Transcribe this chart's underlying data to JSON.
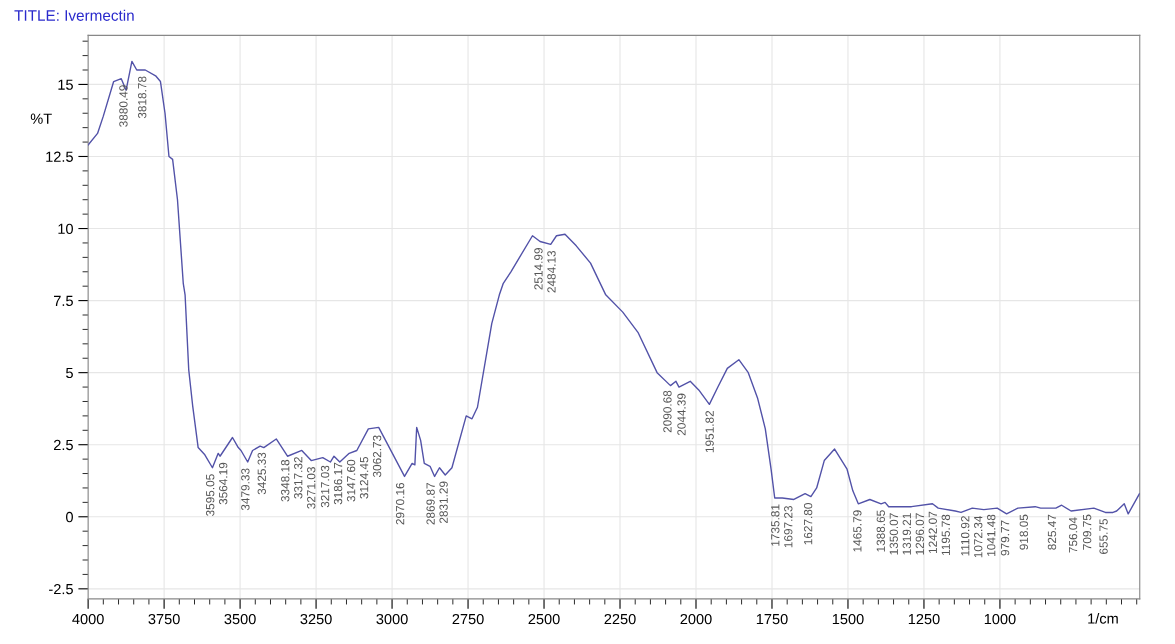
{
  "chart_data": {
    "type": "line",
    "title": "TITLE: Ivermectin",
    "xlabel": "1/cm",
    "ylabel": "%T",
    "x": [
      4000,
      3969,
      3950,
      3916,
      3891,
      3875,
      3856,
      3840,
      3812,
      3778,
      3762,
      3747,
      3734,
      3722,
      3706,
      3687,
      3681,
      3669,
      3656,
      3638,
      3616,
      3591,
      3572,
      3566,
      3525,
      3506,
      3497,
      3475,
      3459,
      3434,
      3422,
      3381,
      3344,
      3297,
      3266,
      3228,
      3203,
      3191,
      3172,
      3141,
      3116,
      3078,
      3044,
      2959,
      2934,
      2925,
      2919,
      2906,
      2894,
      2875,
      2860,
      2844,
      2825,
      2803,
      2756,
      2737,
      2719,
      2672,
      2647,
      2634,
      2609,
      2538,
      2513,
      2478,
      2459,
      2431,
      2394,
      2347,
      2297,
      2241,
      2191,
      2128,
      2084,
      2066,
      2056,
      2019,
      1991,
      1956,
      1928,
      1897,
      1859,
      1828,
      1797,
      1772,
      1753,
      1741,
      1716,
      1678,
      1641,
      1622,
      1603,
      1578,
      1544,
      1503,
      1484,
      1466,
      1428,
      1391,
      1378,
      1366,
      1291,
      1222,
      1203,
      1147,
      1128,
      1091,
      1053,
      1009,
      978,
      941,
      884,
      866,
      816,
      797,
      766,
      691,
      653,
      628,
      616,
      591,
      578,
      541
    ],
    "series": [
      {
        "color": "#5252a8",
        "values": [
          12.9,
          13.3,
          13.9,
          15.1,
          15.2,
          14.8,
          15.8,
          15.5,
          15.5,
          15.3,
          15.1,
          14.0,
          12.5,
          12.4,
          11.0,
          8.1,
          7.7,
          5.1,
          3.85,
          2.4,
          2.15,
          1.7,
          2.2,
          2.1,
          2.75,
          2.4,
          2.3,
          1.9,
          2.3,
          2.45,
          2.4,
          2.7,
          2.1,
          2.3,
          1.95,
          2.05,
          1.9,
          2.1,
          1.9,
          2.2,
          2.3,
          3.05,
          3.1,
          1.4,
          1.85,
          1.8,
          3.1,
          2.65,
          1.85,
          1.75,
          1.4,
          1.7,
          1.45,
          1.7,
          3.5,
          3.4,
          3.8,
          6.7,
          7.7,
          8.1,
          8.5,
          9.75,
          9.55,
          9.45,
          9.75,
          9.8,
          9.4,
          8.8,
          7.7,
          7.1,
          6.4,
          5.0,
          4.55,
          4.7,
          4.5,
          4.7,
          4.4,
          3.9,
          4.5,
          5.15,
          5.45,
          5.0,
          4.1,
          3.05,
          1.65,
          0.65,
          0.65,
          0.6,
          0.8,
          0.7,
          1.0,
          1.95,
          2.35,
          1.65,
          0.9,
          0.45,
          0.6,
          0.45,
          0.5,
          0.35,
          0.35,
          0.45,
          0.3,
          0.2,
          0.15,
          0.3,
          0.25,
          0.3,
          0.1,
          0.3,
          0.35,
          0.3,
          0.3,
          0.4,
          0.2,
          0.3,
          0.15,
          0.15,
          0.2,
          0.45,
          0.1,
          0.8
        ]
      }
    ],
    "xlim": [
      4000,
      540
    ],
    "ylim": [
      -2.85,
      16.7
    ],
    "xticks": [
      4000,
      3750,
      3500,
      3250,
      3000,
      2750,
      2500,
      2250,
      2000,
      1750,
      1500,
      1250,
      1000
    ],
    "yticks": [
      -2.5,
      0,
      2.5,
      5,
      7.5,
      10,
      12.5,
      15
    ],
    "grid": true,
    "line_style": "solid",
    "marker": "none",
    "annotations": [
      {
        "text": "3880.49",
        "x": 3880.49,
        "y": 15.2
      },
      {
        "text": "3818.78",
        "x": 3818.78,
        "y": 15.5
      },
      {
        "text": "3595.05",
        "x": 3595.05,
        "y": 1.7
      },
      {
        "text": "3564.19",
        "x": 3564.19,
        "y": 2.1
      },
      {
        "text": "3479.33",
        "x": 3479.33,
        "y": 1.9
      },
      {
        "text": "3425.33",
        "x": 3425.33,
        "y": 2.45
      },
      {
        "text": "3348.18",
        "x": 3348.18,
        "y": 2.2
      },
      {
        "text": "3317.32",
        "x": 3317.32,
        "y": 2.3
      },
      {
        "text": "3271.03",
        "x": 3271.03,
        "y": 1.95
      },
      {
        "text": "3217.03",
        "x": 3217.03,
        "y": 2.0
      },
      {
        "text": "3186.17",
        "x": 3186.17,
        "y": 2.1
      },
      {
        "text": "3147.60",
        "x": 3147.6,
        "y": 2.2
      },
      {
        "text": "3124.45",
        "x": 3124.45,
        "y": 2.3
      },
      {
        "text": "3062.73",
        "x": 3062.73,
        "y": 3.05
      },
      {
        "text": "2970.16",
        "x": 2970.16,
        "y": 1.4
      },
      {
        "text": "2869.87",
        "x": 2869.87,
        "y": 1.4
      },
      {
        "text": "2831.29",
        "x": 2831.29,
        "y": 1.45
      },
      {
        "text": "2514.99",
        "x": 2514.99,
        "y": 9.55
      },
      {
        "text": "2484.13",
        "x": 2484.13,
        "y": 9.45
      },
      {
        "text": "2090.68",
        "x": 2090.68,
        "y": 4.6
      },
      {
        "text": "2044.39",
        "x": 2044.39,
        "y": 4.5
      },
      {
        "text": "1951.82",
        "x": 1951.82,
        "y": 3.9
      },
      {
        "text": "1735.81",
        "x": 1735.81,
        "y": 0.65
      },
      {
        "text": "1697.23",
        "x": 1697.23,
        "y": 0.6
      },
      {
        "text": "1627.80",
        "x": 1627.8,
        "y": 0.7
      },
      {
        "text": "1465.79",
        "x": 1465.79,
        "y": 0.45
      },
      {
        "text": "1388.65",
        "x": 1388.65,
        "y": 0.45
      },
      {
        "text": "1350.07",
        "x": 1350.07,
        "y": 0.35
      },
      {
        "text": "1319.21",
        "x": 1319.21,
        "y": 0.35
      },
      {
        "text": "1296.07",
        "x": 1296.07,
        "y": 0.35
      },
      {
        "text": "1242.07",
        "x": 1242.07,
        "y": 0.4
      },
      {
        "text": "1195.78",
        "x": 1195.78,
        "y": 0.3
      },
      {
        "text": "1110.92",
        "x": 1110.92,
        "y": 0.25
      },
      {
        "text": "1072.34",
        "x": 1072.34,
        "y": 0.25
      },
      {
        "text": "1041.48",
        "x": 1041.48,
        "y": 0.3
      },
      {
        "text": "979.77",
        "x": 979.77,
        "y": 0.1
      },
      {
        "text": "918.05",
        "x": 918.05,
        "y": 0.3
      },
      {
        "text": "825.47",
        "x": 825.47,
        "y": 0.3
      },
      {
        "text": "756.04",
        "x": 756.04,
        "y": 0.2
      },
      {
        "text": "709.75",
        "x": 709.75,
        "y": 0.3
      },
      {
        "text": "655.75",
        "x": 655.75,
        "y": 0.15
      }
    ]
  }
}
